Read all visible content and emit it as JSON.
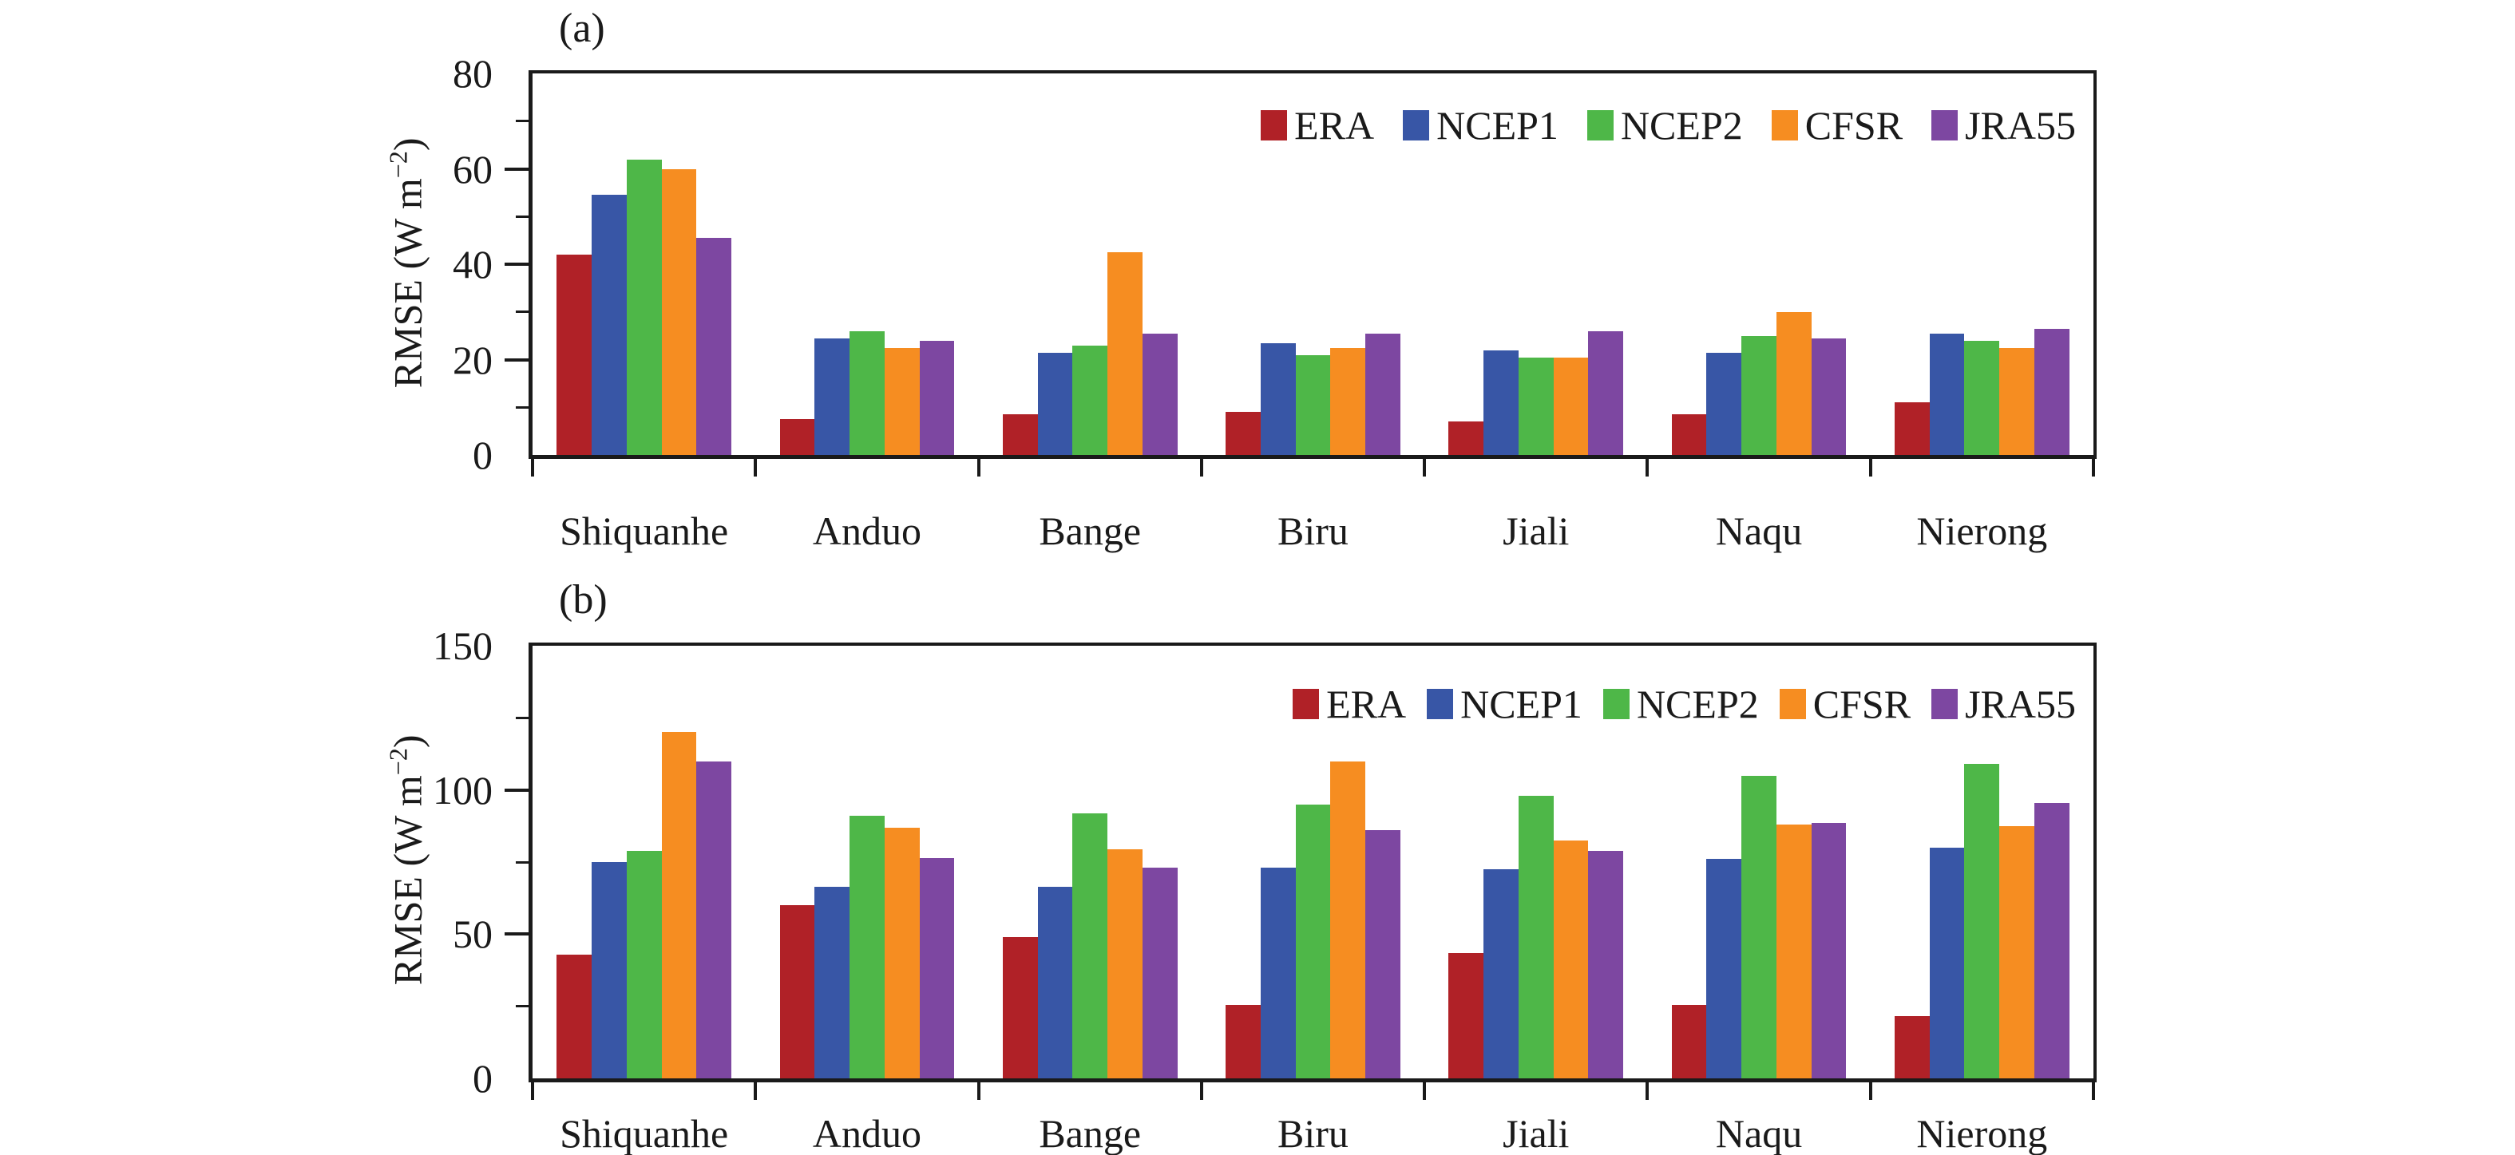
{
  "figure": {
    "background": "#ffffff",
    "axis_color": "#1a1a1a"
  },
  "colors": {
    "ERA": "#b02127",
    "NCEP1": "#3856a6",
    "NCEP2": "#4eb748",
    "CFSR": "#f68d21",
    "JRA55": "#7d47a1"
  },
  "chart_data": [
    {
      "type": "bar",
      "panel_label": "(a)",
      "ylabel": {
        "base": "RMSE (W m",
        "sup": "−2",
        "close": ")"
      },
      "ylim": [
        0,
        80
      ],
      "yticks": [
        0,
        20,
        40,
        60,
        80
      ],
      "ytick_labels": [
        "0",
        "20",
        "40",
        "60",
        "80"
      ],
      "yminor_step": 10,
      "grid": "off",
      "legend_position": "top-right-inside",
      "categories": [
        "Shiquanhe",
        "Anduo",
        "Bange",
        "Biru",
        "Jiali",
        "Naqu",
        "Nierong"
      ],
      "series": [
        {
          "name": "ERA",
          "color": "#b02127",
          "values": [
            42,
            7.5,
            8.5,
            9,
            7,
            8.5,
            11
          ]
        },
        {
          "name": "NCEP1",
          "color": "#3856a6",
          "values": [
            54.5,
            24.5,
            21.5,
            23.5,
            22,
            21.5,
            25.5
          ]
        },
        {
          "name": "NCEP2",
          "color": "#4eb748",
          "values": [
            62,
            26,
            23,
            21,
            20.5,
            25,
            24
          ]
        },
        {
          "name": "CFSR",
          "color": "#f68d21",
          "values": [
            60,
            22.5,
            42.5,
            22.5,
            20.5,
            30,
            22.5
          ]
        },
        {
          "name": "JRA55",
          "color": "#7d47a1",
          "values": [
            45.5,
            24,
            25.5,
            25.5,
            26,
            24.5,
            26.5
          ]
        }
      ]
    },
    {
      "type": "bar",
      "panel_label": "(b)",
      "ylabel": {
        "base": "RMSE (W m",
        "sup": "−2",
        "close": ")"
      },
      "ylim": [
        0,
        150
      ],
      "yticks": [
        0,
        50,
        100,
        150
      ],
      "ytick_labels": [
        "0",
        "50",
        "100",
        "150"
      ],
      "yminor_step": 25,
      "grid": "off",
      "legend_position": "top-right-inside",
      "categories": [
        "Shiquanhe",
        "Anduo",
        "Bange",
        "Biru",
        "Jiali",
        "Naqu",
        "Nierong"
      ],
      "series": [
        {
          "name": "ERA",
          "color": "#b02127",
          "values": [
            43,
            60,
            49,
            25.5,
            43.5,
            25.5,
            21.5
          ]
        },
        {
          "name": "NCEP1",
          "color": "#3856a6",
          "values": [
            75,
            66.5,
            66.5,
            73,
            72.5,
            76,
            80
          ]
        },
        {
          "name": "NCEP2",
          "color": "#4eb748",
          "values": [
            79,
            91,
            92,
            95,
            98,
            105,
            109
          ]
        },
        {
          "name": "CFSR",
          "color": "#f68d21",
          "values": [
            120,
            87,
            79.5,
            110,
            82.5,
            88,
            87.5
          ]
        },
        {
          "name": "JRA55",
          "color": "#7d47a1",
          "values": [
            110,
            76.5,
            73,
            86,
            79,
            88.5,
            95.5
          ]
        }
      ]
    }
  ]
}
